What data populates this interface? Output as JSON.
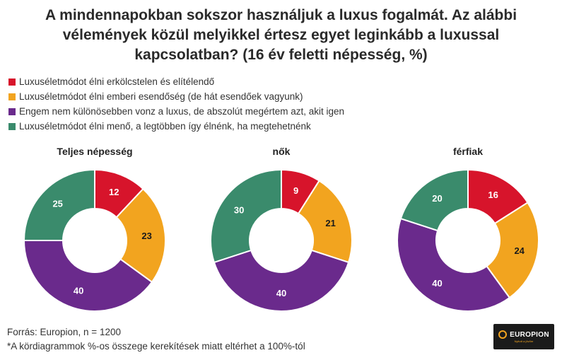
{
  "title_line1": "A mindennapokban sokszor használjuk a luxus fogalmát. Az alábbi",
  "title_line2": "vélemények közül melyikkel értesz egyet leginkább a luxussal",
  "title_line3": "kapcsolatban? (16 év feletti népesség, %)",
  "legend": [
    {
      "label": "Luxuséletmódot élni erkölcstelen és elítélendő",
      "color": "#d7142b"
    },
    {
      "label": "Luxuséletmódot élni emberi esendőség (de hát esendőek vagyunk)",
      "color": "#f2a41f"
    },
    {
      "label": "Engem nem különösebben vonz a luxus, de abszolút megértem azt, akit igen",
      "color": "#6a2a8c"
    },
    {
      "label": "Luxuséletmódot élni menő, a legtöbben így élnénk, ha megtehetnénk",
      "color": "#3a8b6c"
    }
  ],
  "chart_data": {
    "type": "pie",
    "variant": "donut",
    "title": "A mindennapokban sokszor használjuk a luxus fogalmát. Az alábbi vélemények közül melyikkel értesz egyet leginkább a luxussal kapcsolatban? (16 év feletti népesség, %)",
    "categories": [
      "Luxuséletmódot élni erkölcstelen és elítélendő",
      "Luxuséletmódot élni emberi esendőség (de hát esendőek vagyunk)",
      "Engem nem különösebben vonz a luxus, de abszolút megértem azt, akit igen",
      "Luxuséletmódot élni menő, a legtöbben így élnénk, ha megtehetnénk"
    ],
    "series": [
      {
        "name": "Teljes népesség",
        "values": [
          12,
          23,
          40,
          25
        ]
      },
      {
        "name": "nők",
        "values": [
          9,
          21,
          40,
          30
        ]
      },
      {
        "name": "férfiak",
        "values": [
          16,
          24,
          40,
          20
        ]
      }
    ],
    "colors": [
      "#d7142b",
      "#f2a41f",
      "#6a2a8c",
      "#3a8b6c"
    ],
    "unit": "%"
  },
  "footer": {
    "source": "Forrás: Europion, n = 1200",
    "note": "*A kördiagrammok %-os összege kerekítések miatt eltérhet a 100%-tól"
  },
  "logo": {
    "name": "EUROPION",
    "tagline": "Nyitott a jövőre"
  }
}
